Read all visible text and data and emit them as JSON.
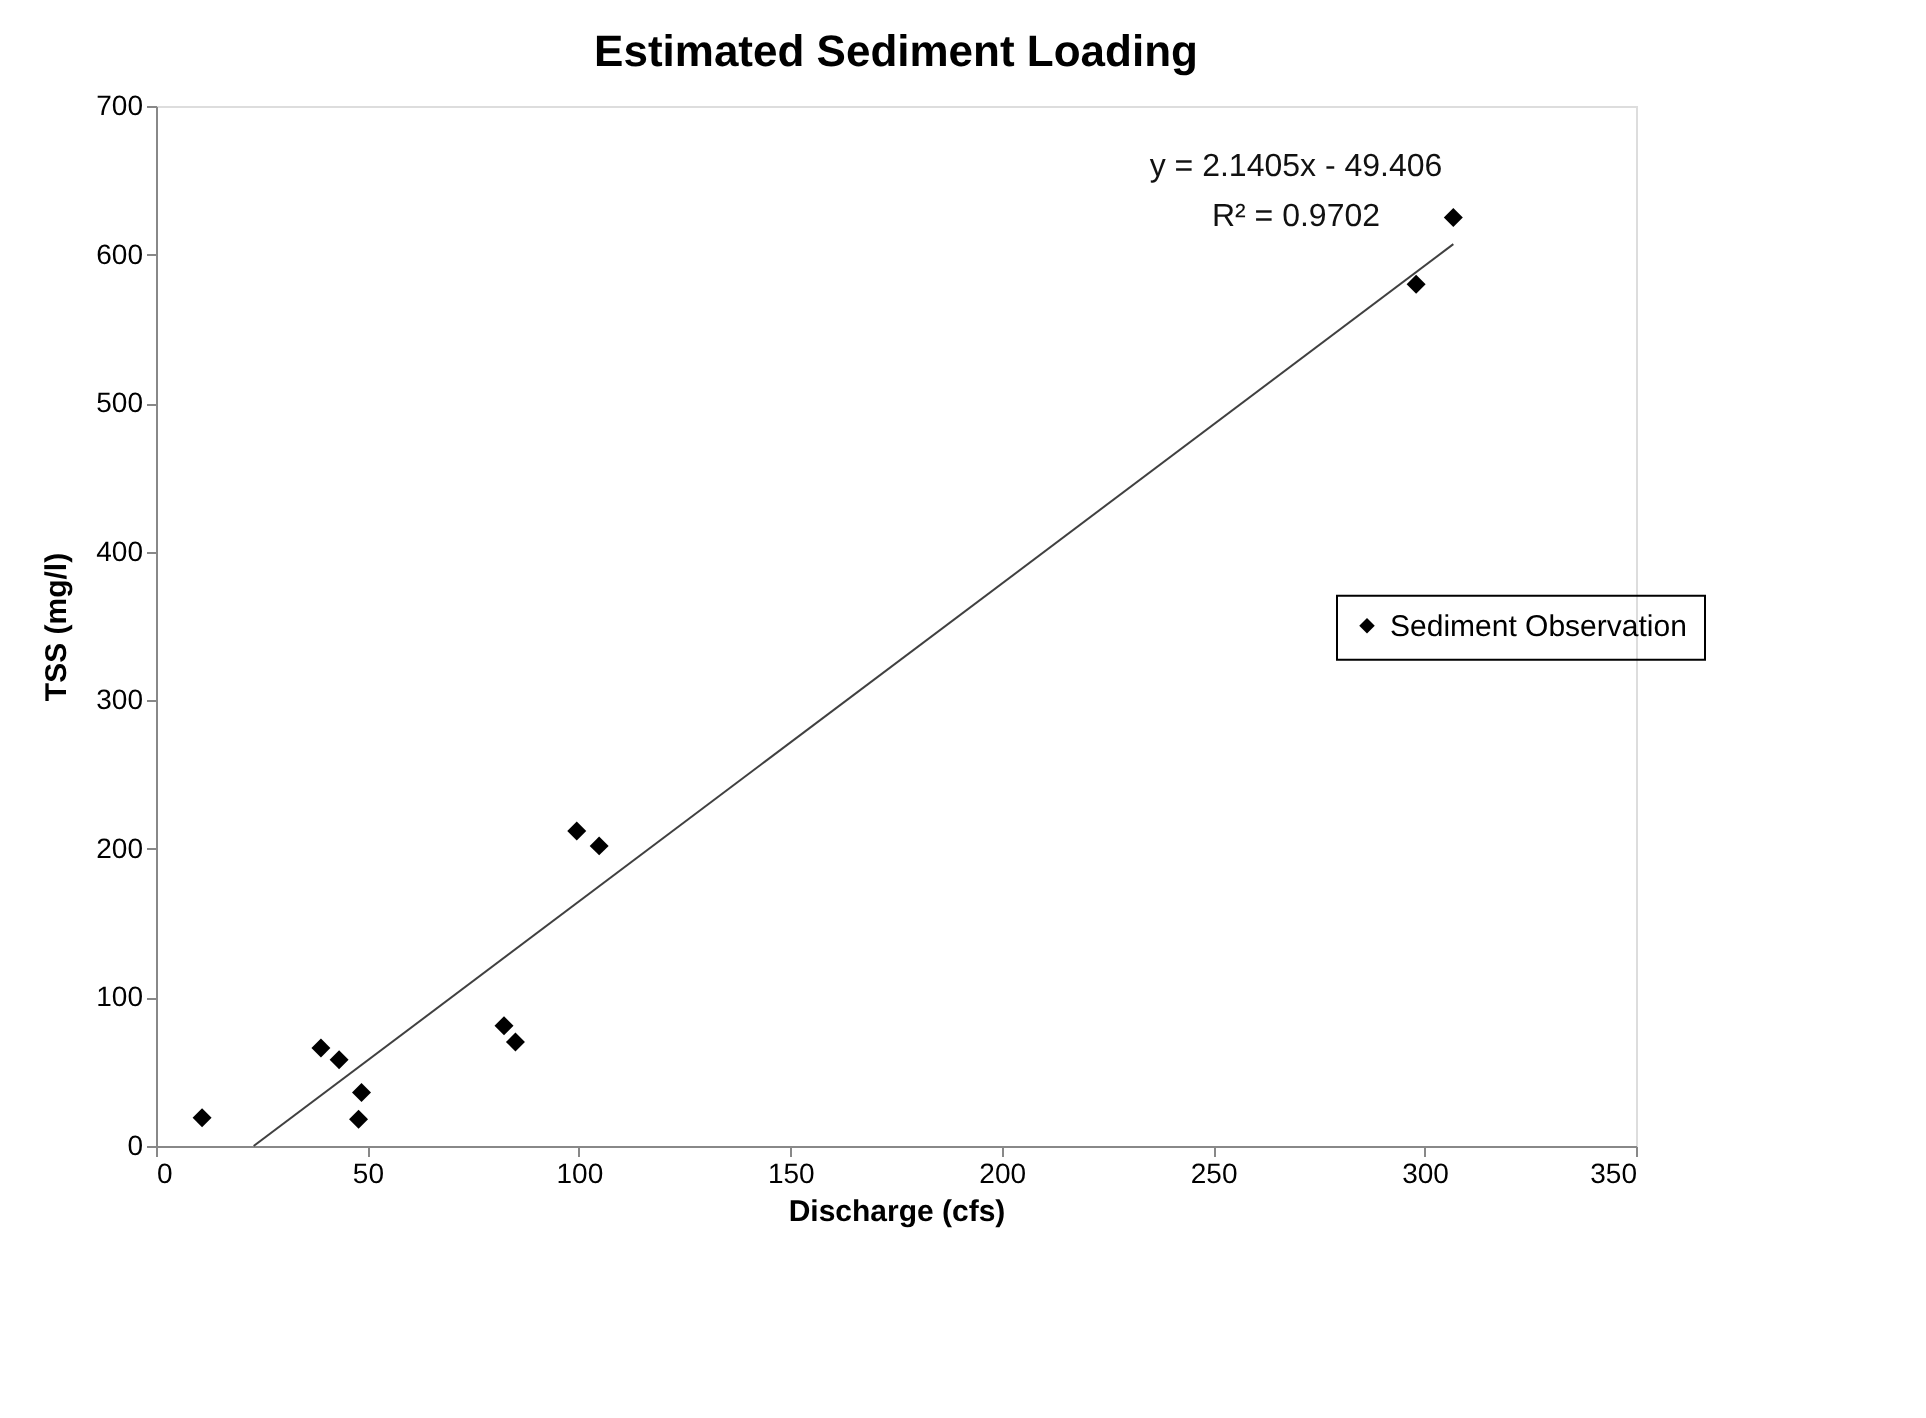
{
  "chart_data": {
    "type": "scatter",
    "title": "Estimated Sediment Loading",
    "xlabel": "Discharge (cfs)",
    "ylabel": "TSS (mg/l)",
    "xlim": [
      0,
      350
    ],
    "xticks": [
      0,
      50,
      100,
      150,
      200,
      250,
      300,
      350
    ],
    "ylim": [
      0,
      700
    ],
    "yticks": [
      0,
      100,
      200,
      300,
      400,
      500,
      600,
      700
    ],
    "grid": false,
    "legend": "right",
    "marker": "diamond",
    "series": [
      {
        "name": "Sediment Observation",
        "color": "#000000",
        "x": [
          10.9,
          39,
          43.3,
          48.6,
          47.9,
          82.3,
          85,
          99.5,
          104.8,
          298,
          306.8
        ],
        "values": [
          19,
          66,
          58,
          36,
          18,
          81,
          70,
          212,
          202,
          580,
          625
        ]
      },
      {
        "color": "#404040",
        "type": "line",
        "line_style": "solid",
        "marker": "none",
        "x": [
          23.1,
          306.8
        ],
        "values": [
          0,
          607
        ]
      }
    ],
    "annotations": [
      "y = 2.1405x - 49.406",
      "R² = 0.9702"
    ]
  }
}
